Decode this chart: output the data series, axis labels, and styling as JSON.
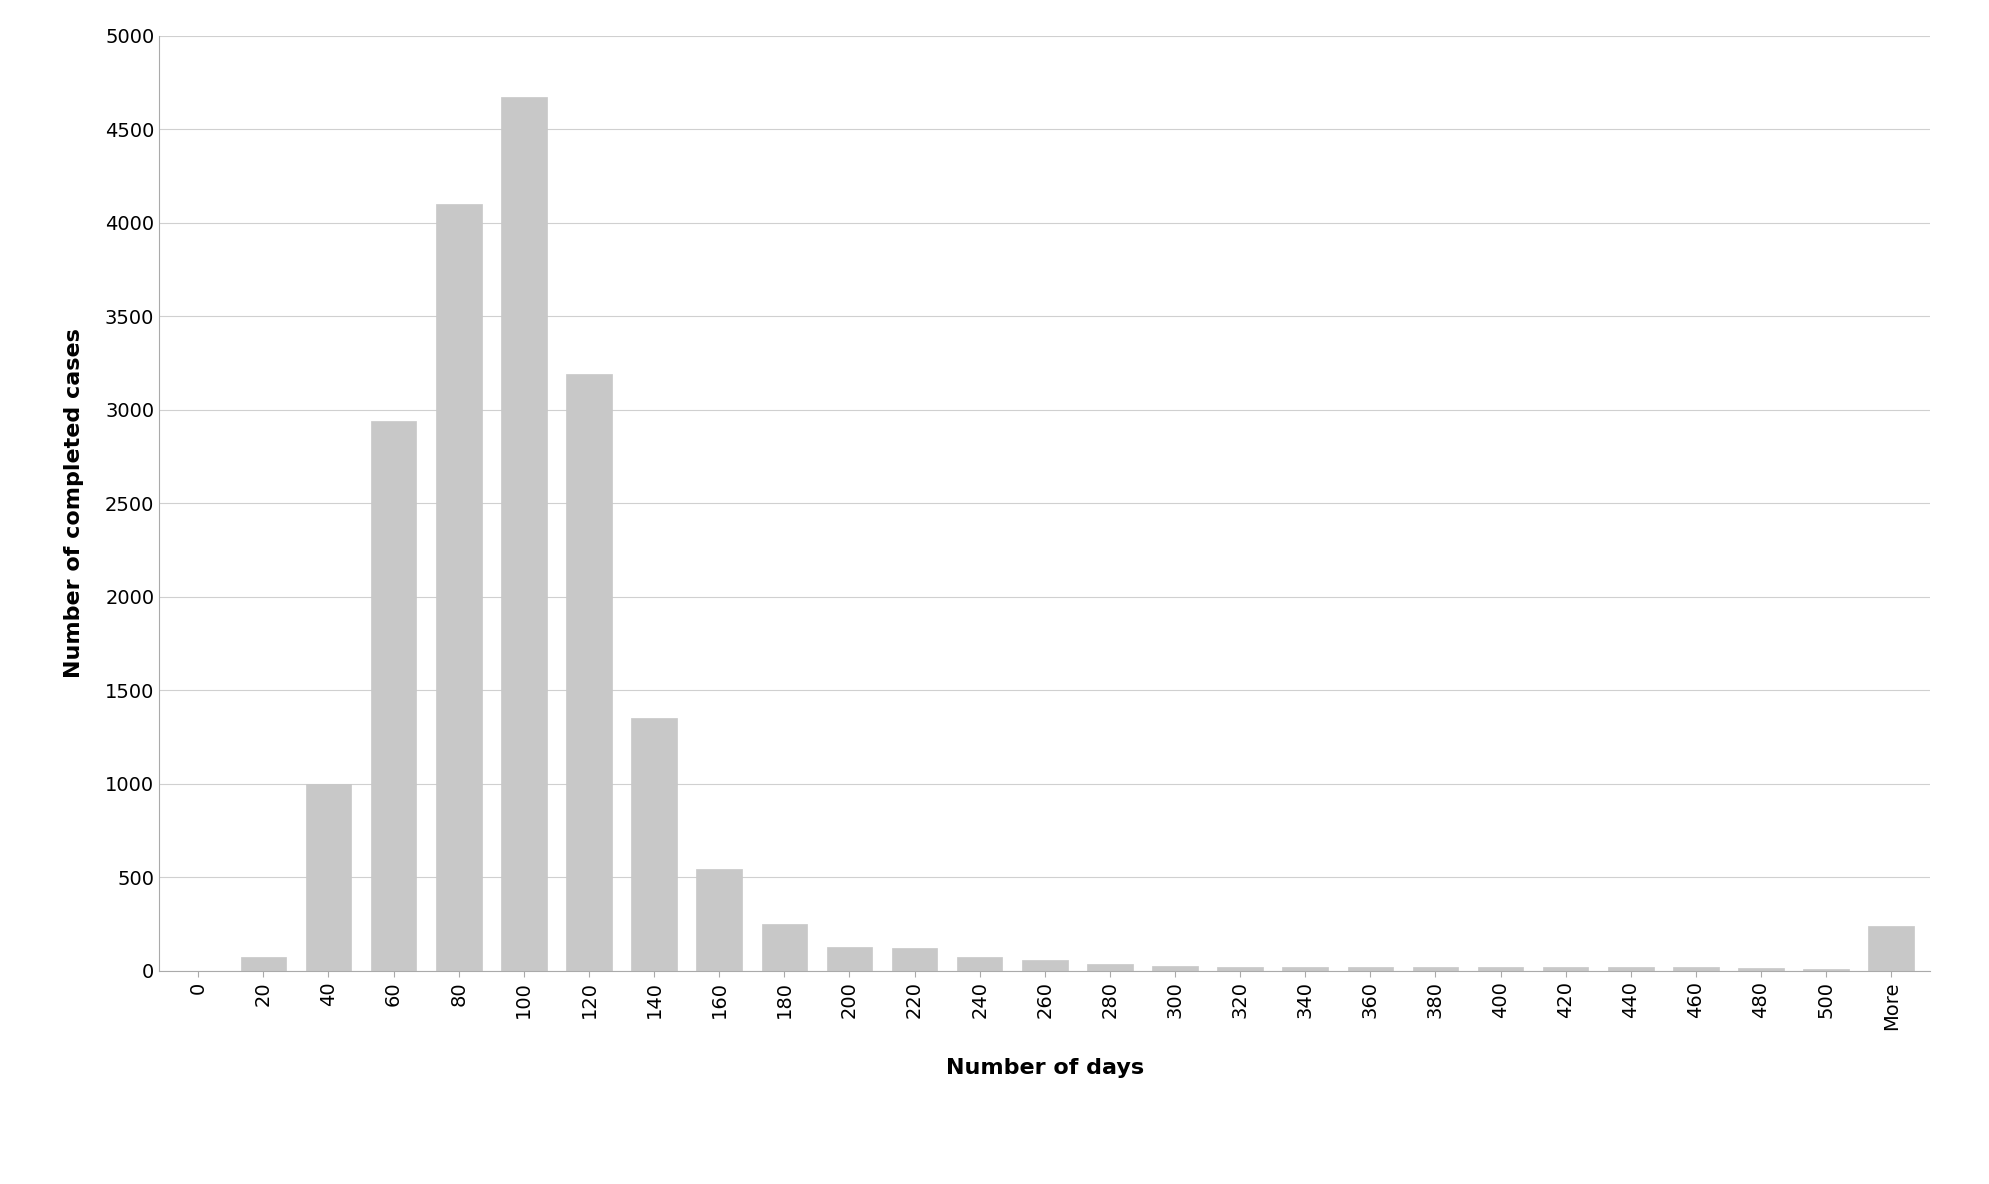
{
  "categories": [
    "0",
    "20",
    "40",
    "60",
    "80",
    "100",
    "120",
    "140",
    "160",
    "180",
    "200",
    "220",
    "240",
    "260",
    "280",
    "300",
    "320",
    "340",
    "360",
    "380",
    "400",
    "420",
    "440",
    "460",
    "480",
    "500",
    "More"
  ],
  "values": [
    0,
    75,
    1000,
    2940,
    4100,
    4670,
    3190,
    1350,
    545,
    250,
    130,
    120,
    75,
    60,
    35,
    25,
    20,
    20,
    20,
    20,
    20,
    20,
    20,
    20,
    15,
    10,
    240
  ],
  "bar_color": "#c8c8c8",
  "bar_edge_color": "#c8c8c8",
  "xlabel": "Number of days",
  "ylabel": "Number of completed cases",
  "ylim": [
    0,
    5000
  ],
  "yticks": [
    0,
    500,
    1000,
    1500,
    2000,
    2500,
    3000,
    3500,
    4000,
    4500,
    5000
  ],
  "xlabel_fontsize": 16,
  "ylabel_fontsize": 16,
  "tick_fontsize": 14,
  "xlabel_fontweight": "bold",
  "ylabel_fontweight": "bold",
  "background_color": "#ffffff",
  "bar_width": 0.7
}
